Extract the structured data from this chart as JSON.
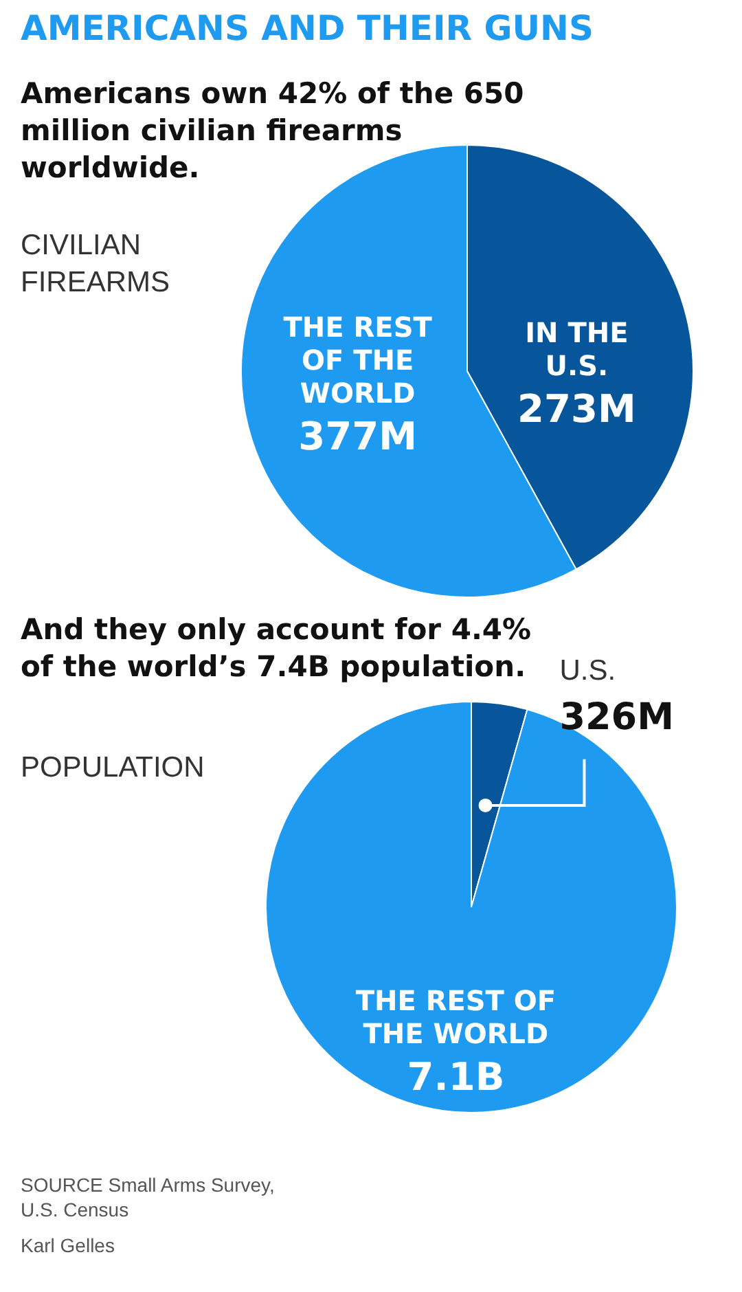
{
  "chart_data": [
    {
      "type": "pie",
      "title": "AMERICANS AND THEIR GUNS",
      "subtitle": "Americans own 42% of the 650 million civilian firearms worldwide.",
      "annotations": [
        "CIVILIAN FIREARMS"
      ],
      "categories": [
        "IN THE U.S.",
        "THE REST OF THE WORLD"
      ],
      "values": [
        273,
        377
      ],
      "value_labels": [
        "273M",
        "377M"
      ],
      "colors": [
        "#07559b",
        "#1e9bf0"
      ]
    },
    {
      "type": "pie",
      "subtitle": "And they only account for 4.4% of the world’s 7.4B population.",
      "annotations": [
        "POPULATION",
        "SOURCE Small Arms Survey, U.S. Census",
        "Karl Gelles"
      ],
      "categories": [
        "U.S.",
        "THE REST OF THE WORLD"
      ],
      "values": [
        326000000,
        7100000000
      ],
      "value_labels": [
        "326M",
        "7.1B"
      ],
      "colors": [
        "#07559b",
        "#1e9bf0"
      ]
    }
  ]
}
